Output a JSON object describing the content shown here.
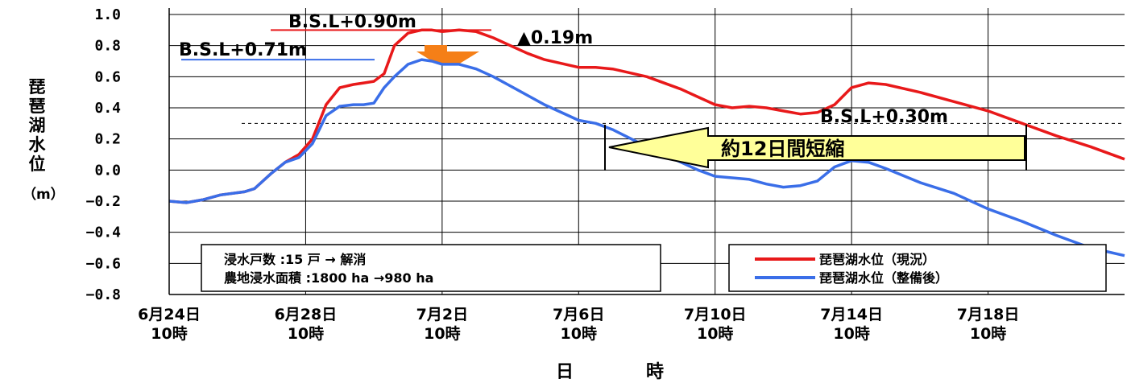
{
  "chart_data": {
    "type": "line",
    "title": "",
    "xlabel": "日　時",
    "ylabel_chars": [
      "琵",
      "琶",
      "湖",
      "水",
      "位",
      "（m）"
    ],
    "ylim": [
      -0.8,
      1.0
    ],
    "yticks": [
      "1.0",
      "0.8",
      "0.6",
      "0.4",
      "0.2",
      "0.0",
      "−0.2",
      "−0.4",
      "−0.6",
      "−0.8"
    ],
    "ytick_values": [
      1.0,
      0.8,
      0.6,
      0.4,
      0.2,
      0.0,
      -0.2,
      -0.4,
      -0.6,
      -0.8
    ],
    "xlim": [
      0,
      28
    ],
    "xticks": [
      {
        "x": 0,
        "line1": "6月24日",
        "line2": "10時"
      },
      {
        "x": 4,
        "line1": "6月28日",
        "line2": "10時"
      },
      {
        "x": 8,
        "line1": "7月2日",
        "line2": "10時"
      },
      {
        "x": 12,
        "line1": "7月6日",
        "line2": "10時"
      },
      {
        "x": 16,
        "line1": "7月10日",
        "line2": "10時"
      },
      {
        "x": 20,
        "line1": "7月14日",
        "line2": "10時"
      },
      {
        "x": 24,
        "line1": "7月18日",
        "line2": "10時"
      }
    ],
    "grid": true,
    "legend_position": "bottom-right",
    "series": [
      {
        "name": "琵琶湖水位（現況）",
        "color": "#e8191a",
        "x": [
          0,
          0.5,
          1,
          1.5,
          2.2,
          2.5,
          3,
          3.4,
          3.8,
          4.2,
          4.6,
          5.0,
          5.4,
          5.7,
          6.0,
          6.3,
          6.6,
          7.0,
          7.4,
          7.7,
          8.0,
          8.5,
          9.0,
          9.5,
          10.0,
          10.5,
          11.0,
          12.0,
          12.5,
          13.0,
          14.0,
          15.0,
          15.5,
          16.0,
          16.5,
          17.0,
          17.5,
          18.0,
          18.5,
          19.0,
          19.5,
          20.0,
          20.5,
          21.0,
          22.0,
          23.0,
          24.0,
          25.0,
          26.0,
          27.0,
          28.0
        ],
        "values": [
          -0.2,
          -0.21,
          -0.19,
          -0.16,
          -0.14,
          -0.12,
          -0.02,
          0.05,
          0.1,
          0.2,
          0.42,
          0.53,
          0.55,
          0.56,
          0.57,
          0.62,
          0.8,
          0.88,
          0.9,
          0.9,
          0.89,
          0.9,
          0.89,
          0.85,
          0.8,
          0.75,
          0.71,
          0.66,
          0.66,
          0.65,
          0.6,
          0.52,
          0.47,
          0.42,
          0.4,
          0.41,
          0.4,
          0.38,
          0.36,
          0.37,
          0.42,
          0.53,
          0.56,
          0.55,
          0.5,
          0.44,
          0.38,
          0.3,
          0.22,
          0.15,
          0.07
        ]
      },
      {
        "name": "琵琶湖水位（整備後）",
        "color": "#3a6ee8",
        "x": [
          0,
          0.5,
          1,
          1.5,
          2.2,
          2.5,
          3,
          3.4,
          3.8,
          4.2,
          4.6,
          5.0,
          5.4,
          5.7,
          6.0,
          6.3,
          6.6,
          7.0,
          7.4,
          7.7,
          8.0,
          8.5,
          9.0,
          9.5,
          10.0,
          10.5,
          11.0,
          12.0,
          12.5,
          13.0,
          14.0,
          15.0,
          15.5,
          16.0,
          16.5,
          17.0,
          17.5,
          18.0,
          18.5,
          19.0,
          19.5,
          20.0,
          20.5,
          21.0,
          22.0,
          23.0,
          24.0,
          25.0,
          26.0,
          27.0,
          28.0
        ],
        "values": [
          -0.2,
          -0.21,
          -0.19,
          -0.16,
          -0.14,
          -0.12,
          -0.02,
          0.05,
          0.08,
          0.17,
          0.35,
          0.41,
          0.42,
          0.42,
          0.43,
          0.53,
          0.6,
          0.68,
          0.71,
          0.7,
          0.68,
          0.68,
          0.65,
          0.6,
          0.54,
          0.48,
          0.42,
          0.32,
          0.3,
          0.26,
          0.15,
          0.05,
          0.0,
          -0.04,
          -0.05,
          -0.06,
          -0.09,
          -0.11,
          -0.1,
          -0.07,
          0.02,
          0.06,
          0.05,
          0.01,
          -0.08,
          -0.15,
          -0.25,
          -0.33,
          -0.42,
          -0.5,
          -0.55
        ]
      }
    ],
    "annotations": {
      "bsl_090": "B.S.L+0.90m",
      "bsl_071": "B.S.L+0.71m",
      "bsl_030": "B.S.L+0.30m",
      "diff": "▲0.19m",
      "shortening": "約12日間短縮",
      "bsl_030_value": 0.3,
      "bsl_090_value": 0.9,
      "bsl_071_value": 0.71
    },
    "info_box": {
      "line1": "浸水戸数 :15 戸 → 解消",
      "line2": "農地浸水面積 :1800 ha →980 ha"
    }
  },
  "colors": {
    "arrow_fill": "#ffff99",
    "arrow_stroke": "#000000",
    "orange_arrow": "#f57f17",
    "grid": "#000000"
  }
}
